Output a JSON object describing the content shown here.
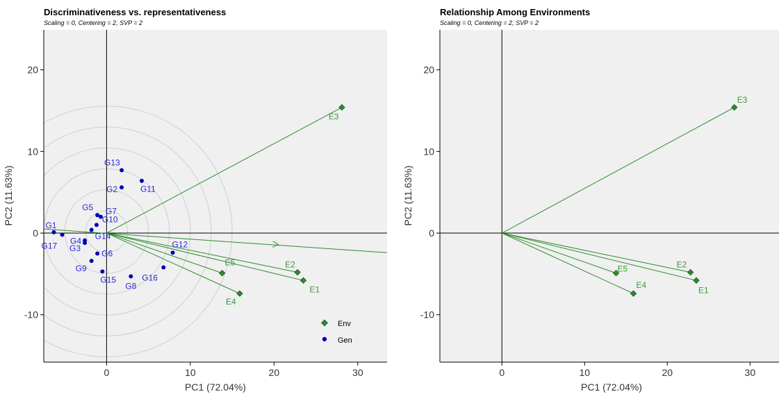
{
  "chart_data": [
    {
      "type": "scatter",
      "title": "Discriminativeness vs. representativeness",
      "subtitle": "Scaling = 0, Centering = 2, SVP = 2",
      "xlabel": "PC1 (72.04%)",
      "ylabel": "PC2 (11.63%)",
      "xlim": [
        -7.5,
        33.5
      ],
      "ylim": [
        -15.8,
        24.9
      ],
      "xticks": [
        0,
        10,
        20,
        30
      ],
      "yticks": [
        -10,
        0,
        10,
        20
      ],
      "colors": {
        "env": "#2e8b2e",
        "gen": "#0000b4",
        "env_label": "#3a9a3a",
        "gen_label": "#2828d8",
        "panel_bg": "#f0f0f0",
        "circle": "#cfcfcf"
      },
      "legend": {
        "position": "bottom-right",
        "items": [
          "Env",
          "Gen"
        ]
      },
      "environments": [
        {
          "name": "E1",
          "x": 23.5,
          "y": -5.8
        },
        {
          "name": "E2",
          "x": 22.8,
          "y": -4.8
        },
        {
          "name": "E3",
          "x": 28.1,
          "y": 15.4
        },
        {
          "name": "E4",
          "x": 15.9,
          "y": -7.4
        },
        {
          "name": "E5",
          "x": 13.8,
          "y": -4.9
        }
      ],
      "genotypes": [
        {
          "name": "G1",
          "x": -6.3,
          "y": 0.1
        },
        {
          "name": "G2",
          "x": 1.8,
          "y": 5.6
        },
        {
          "name": "G3",
          "x": -2.6,
          "y": -1.2
        },
        {
          "name": "G4",
          "x": -2.6,
          "y": -0.9
        },
        {
          "name": "G5",
          "x": -1.1,
          "y": 2.2
        },
        {
          "name": "G6",
          "x": -1.1,
          "y": -2.5
        },
        {
          "name": "G7",
          "x": -0.7,
          "y": 2.0
        },
        {
          "name": "G8",
          "x": 2.9,
          "y": -5.3
        },
        {
          "name": "G9",
          "x": -1.8,
          "y": -3.4
        },
        {
          "name": "G10",
          "x": -1.2,
          "y": 1.0
        },
        {
          "name": "G11",
          "x": 4.2,
          "y": 6.4
        },
        {
          "name": "G12",
          "x": 7.9,
          "y": -2.4
        },
        {
          "name": "G13",
          "x": 1.8,
          "y": 7.7
        },
        {
          "name": "G14",
          "x": -1.8,
          "y": 0.4
        },
        {
          "name": "G15",
          "x": -0.5,
          "y": -4.7
        },
        {
          "name": "G16",
          "x": 6.8,
          "y": -4.2
        },
        {
          "name": "G17",
          "x": -5.3,
          "y": -0.2
        }
      ],
      "aec_axis": {
        "from": [
          -7.5,
          0.5
        ],
        "to": [
          33.5,
          -2.4
        ],
        "arrow_at": [
          20.5,
          -1.4
        ]
      },
      "circles_radii": [
        2.5,
        5,
        7.5,
        10,
        12.5,
        15
      ]
    },
    {
      "type": "scatter",
      "title": "Relationship Among Environments",
      "subtitle": "Scaling = 0, Centering = 2, SVP = 2",
      "xlabel": "PC1 (72.04%)",
      "ylabel": "PC2 (11.63%)",
      "xlim": [
        -7.5,
        33.5
      ],
      "ylim": [
        -15.8,
        24.9
      ],
      "xticks": [
        0,
        10,
        20,
        30
      ],
      "yticks": [
        -10,
        0,
        10,
        20
      ],
      "environments": [
        {
          "name": "E1",
          "x": 23.5,
          "y": -5.8
        },
        {
          "name": "E2",
          "x": 22.8,
          "y": -4.8
        },
        {
          "name": "E3",
          "x": 28.1,
          "y": 15.4
        },
        {
          "name": "E4",
          "x": 15.9,
          "y": -7.4
        },
        {
          "name": "E5",
          "x": 13.8,
          "y": -4.9
        }
      ]
    }
  ]
}
